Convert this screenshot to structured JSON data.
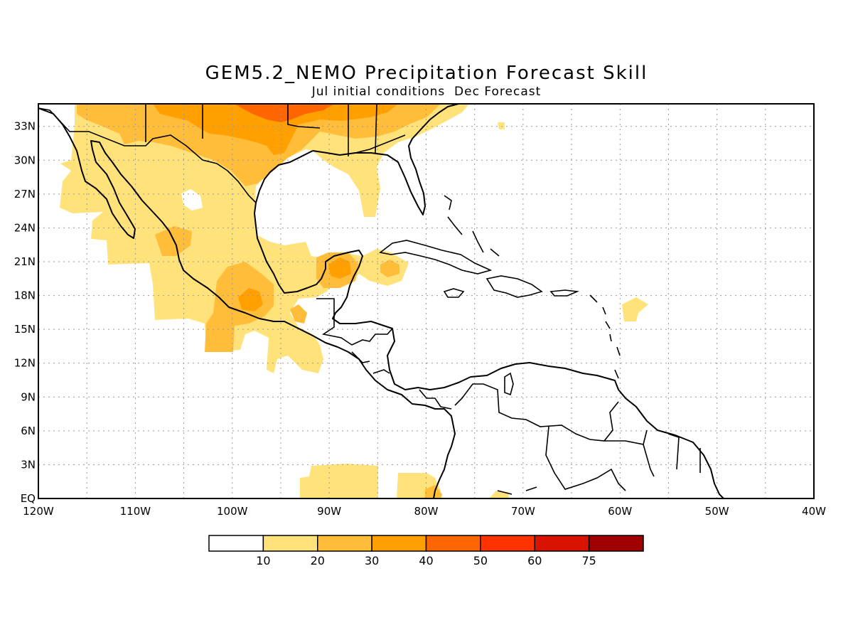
{
  "title": "GEM5.2_NEMO Precipitation Forecast Skill",
  "subtitle": "Jul initial conditions  Dec Forecast",
  "map": {
    "lon_range": [
      -120,
      -40
    ],
    "lat_range": [
      0,
      35
    ],
    "lon_ticks": [
      "120W",
      "110W",
      "100W",
      "90W",
      "80W",
      "70W",
      "60W",
      "50W",
      "40W"
    ],
    "lat_ticks": [
      "EQ",
      "3N",
      "6N",
      "9N",
      "12N",
      "15N",
      "18N",
      "21N",
      "24N",
      "27N",
      "30N",
      "33N"
    ],
    "grid": true
  },
  "colorbar": {
    "labels": [
      "10",
      "20",
      "30",
      "40",
      "50",
      "60",
      "75"
    ],
    "colors": [
      "#ffffff",
      "#ffe37a",
      "#ffbd3a",
      "#ff9f00",
      "#ff6500",
      "#ff3300",
      "#d81400",
      "#a00000"
    ]
  }
}
